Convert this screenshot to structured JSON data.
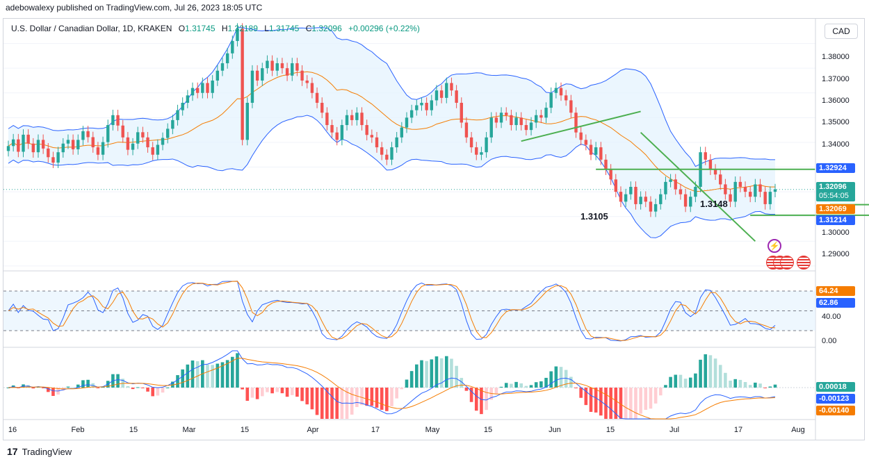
{
  "header": {
    "published": "adebowalexy published on TradingView.com, Jul 26, 2023 18:05 UTC"
  },
  "legend": {
    "symbol": "U.S. Dollar / Canadian Dollar, 1D, KRAKEN",
    "o_label": "O",
    "o": "1.31745",
    "h_label": "H",
    "h": "1.32189",
    "l_label": "L",
    "l": "1.31745",
    "c_label": "C",
    "c": "1.32096",
    "change": "+0.00296 (+0.22%)"
  },
  "currency": "CAD",
  "price_axis": [
    "1.38000",
    "1.37000",
    "1.36000",
    "1.35000",
    "1.34000",
    "1.29000",
    "1.30000"
  ],
  "price_labels": {
    "bb_upper": "1.32924",
    "last": "1.32096",
    "countdown": "05:54:05",
    "bb_basis": "1.32069",
    "bb_lower": "1.31214"
  },
  "annotations": {
    "support_a": "1.3105",
    "support_b": "1.3148"
  },
  "stoch_axis": [
    "40.00",
    "0.00"
  ],
  "stoch_labels": {
    "k": "64.24",
    "d": "62.86"
  },
  "macd_labels": {
    "hist": "0.00018",
    "macd": "-0.00123",
    "signal": "-0.00140"
  },
  "x_axis": [
    "16",
    "Feb",
    "15",
    "Mar",
    "15",
    "Apr",
    "17",
    "May",
    "15",
    "Jun",
    "15",
    "Jul",
    "17",
    "Aug"
  ],
  "footer": {
    "brand": "TradingView"
  },
  "colors": {
    "up": "#26a69a",
    "down": "#ef5350",
    "bb": "#2962ff",
    "basis": "#f57c00",
    "trend": "#4caf50",
    "hist_up_strong": "#26a69a",
    "hist_up_weak": "#b2dfdb",
    "hist_down_strong": "#ff5252",
    "hist_down_weak": "#ffcdd2"
  },
  "chart_data": {
    "type": "candlestick",
    "pair": "USD/CAD",
    "timeframe": "1D",
    "ylim": [
      1.288,
      1.39
    ],
    "closes": [
      1.3385,
      1.3412,
      1.3362,
      1.3431,
      1.3395,
      1.336,
      1.341,
      1.3375,
      1.334,
      1.3318,
      1.336,
      1.3395,
      1.341,
      1.3372,
      1.341,
      1.3445,
      1.3421,
      1.338,
      1.335,
      1.3401,
      1.347,
      1.351,
      1.3468,
      1.342,
      1.337,
      1.3395,
      1.3441,
      1.342,
      1.338,
      1.335,
      1.339,
      1.3418,
      1.3455,
      1.349,
      1.353,
      1.356,
      1.359,
      1.362,
      1.36,
      1.364,
      1.36,
      1.365,
      1.369,
      1.372,
      1.376,
      1.381,
      1.386,
      1.341,
      1.356,
      1.369,
      1.365,
      1.37,
      1.373,
      1.369,
      1.372,
      1.37,
      1.367,
      1.372,
      1.369,
      1.365,
      1.364,
      1.36,
      1.356,
      1.352,
      1.347,
      1.344,
      1.341,
      1.347,
      1.351,
      1.349,
      1.352,
      1.347,
      1.343,
      1.342,
      1.338,
      1.335,
      1.333,
      1.338,
      1.342,
      1.346,
      1.35,
      1.353,
      1.355,
      1.356,
      1.353,
      1.357,
      1.361,
      1.358,
      1.364,
      1.361,
      1.356,
      1.348,
      1.342,
      1.338,
      1.335,
      1.336,
      1.342,
      1.35,
      1.348,
      1.352,
      1.351,
      1.347,
      1.35,
      1.347,
      1.345,
      1.348,
      1.351,
      1.35,
      1.354,
      1.36,
      1.362,
      1.359,
      1.357,
      1.352,
      1.344,
      1.341,
      1.339,
      1.335,
      1.338,
      1.333,
      1.329,
      1.325,
      1.32,
      1.316,
      1.319,
      1.322,
      1.315,
      1.318,
      1.316,
      1.312,
      1.315,
      1.319,
      1.324,
      1.325,
      1.321,
      1.319,
      1.314,
      1.318,
      1.322,
      1.336,
      1.333,
      1.329,
      1.327,
      1.323,
      1.319,
      1.316,
      1.324,
      1.322,
      1.32,
      1.318,
      1.323,
      1.32,
      1.315,
      1.32,
      1.321
    ],
    "bollinger": {
      "upper": "1.32924",
      "basis": "1.32069",
      "lower": "1.31214"
    },
    "stochastic": {
      "k": 64.24,
      "d": 62.86,
      "levels": [
        20,
        80
      ]
    },
    "macd": {
      "histogram": 0.00018,
      "macd": -0.00123,
      "signal": -0.0014
    }
  }
}
